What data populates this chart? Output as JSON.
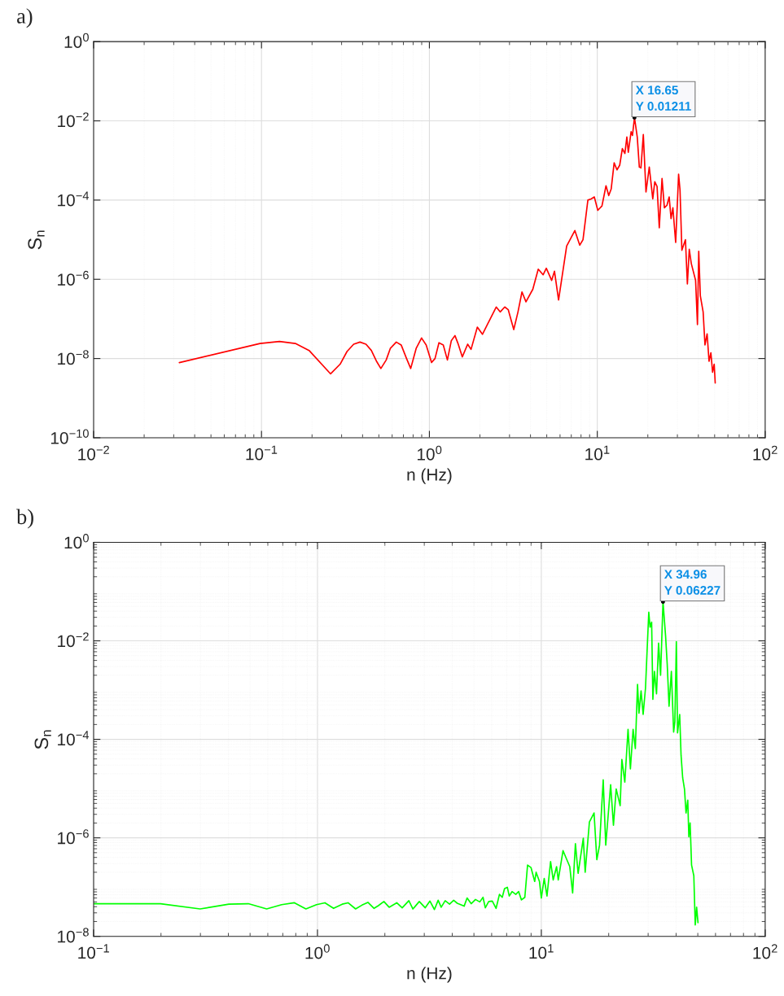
{
  "chart_data": [
    {
      "type": "line",
      "title": "a)",
      "xlabel": "n (Hz)",
      "ylabel": "S$_{n}$",
      "color": "#ff0000",
      "log": "xy",
      "grid": true,
      "xlim": [
        0.01,
        100
      ],
      "ylim": [
        1e-10,
        1
      ],
      "xticks": [
        {
          "value": 0.01,
          "label": "10$^{−2}$"
        },
        {
          "value": 0.1,
          "label": "10$^{−1}$"
        },
        {
          "value": 1,
          "label": "10$^{0}$"
        },
        {
          "value": 10,
          "label": "10$^{1}$"
        },
        {
          "value": 100,
          "label": "10$^{2}$"
        }
      ],
      "yticks": [
        {
          "value": 1e-10,
          "label": "10$^{−10}$"
        },
        {
          "value": 1e-08,
          "label": "10$^{−8}$"
        },
        {
          "value": 1e-06,
          "label": "10$^{−6}$"
        },
        {
          "value": 0.0001,
          "label": "10$^{−4}$"
        },
        {
          "value": 0.01,
          "label": "10$^{−2}$"
        },
        {
          "value": 1,
          "label": "10$^{0}$"
        }
      ],
      "annotations": [
        {
          "text": "X 16.65\nY 0.01211",
          "x": 16.65,
          "y": 0.01211
        }
      ],
      "x": [
        0.0324,
        0.098,
        0.128,
        0.159,
        0.192,
        0.258,
        0.294,
        0.323,
        0.354,
        0.386,
        0.419,
        0.451,
        0.486,
        0.514,
        0.553,
        0.585,
        0.635,
        0.679,
        0.731,
        0.774,
        0.834,
        0.898,
        0.957,
        1.03,
        1.08,
        1.14,
        1.21,
        1.28,
        1.35,
        1.42,
        1.48,
        1.57,
        1.69,
        1.77,
        1.93,
        2.07,
        2.22,
        2.5,
        2.64,
        2.81,
        2.95,
        3.18,
        3.37,
        3.56,
        3.76,
        4.13,
        4.45,
        4.76,
        4.97,
        5.35,
        5.56,
        5.88,
        6.57,
        7.35,
        7.86,
        8.22,
        8.79,
        9.19,
        9.6,
        10.07,
        10.66,
        11.27,
        11.7,
        12.1,
        12.6,
        13.1,
        13.6,
        14.1,
        14.6,
        15.0,
        15.3,
        15.9,
        16.2,
        16.65,
        17.3,
        17.8,
        18.2,
        18.8,
        19.5,
        20.4,
        21.4,
        22.0,
        22.7,
        23.4,
        24.3,
        25.1,
        26.0,
        26.8,
        27.5,
        28.2,
        29.3,
        30.5,
        31.1,
        31.9,
        33.5,
        34.4,
        35.3,
        36.3,
        38.5,
        39.5,
        40.2,
        41.1,
        42.7,
        43.8,
        45.1,
        46.3,
        47.5,
        48.6,
        49.7,
        50.4
      ],
      "values": [
        7.9e-09,
        2.4e-08,
        2.7e-08,
        2.4e-08,
        1.6e-08,
        4.1e-09,
        7.2e-09,
        1.5e-08,
        2.3e-08,
        2.6e-08,
        2.3e-08,
        1.6e-08,
        8.3e-09,
        5.6e-09,
        9.2e-09,
        1.8e-08,
        2.6e-08,
        2.2e-08,
        1e-08,
        5.6e-09,
        1.8e-08,
        3.3e-08,
        2.2e-08,
        7.9e-09,
        1e-08,
        2.5e-08,
        2.2e-08,
        9.2e-09,
        2.8e-08,
        3.8e-08,
        2.4e-08,
        1.1e-08,
        2.3e-08,
        1.7e-08,
        6.2e-08,
        4.1e-08,
        7.4e-08,
        2e-07,
        1.5e-07,
        2e-07,
        1.7e-07,
        5.4e-08,
        1.5e-07,
        4.8e-07,
        2.7e-07,
        5.6e-07,
        1.8e-06,
        1.3e-06,
        1.9e-06,
        9.4e-07,
        1.6e-06,
        3e-07,
        6.9e-06,
        1.7e-05,
        7.3e-06,
        1e-05,
        0.0001,
        0.000107,
        0.00012,
        5.5e-05,
        7.1e-05,
        0.00023,
        0.00013,
        0.00019,
        0.00087,
        0.00058,
        0.00076,
        0.002,
        0.0015,
        0.0039,
        0.0016,
        0.0053,
        0.0043,
        0.01211,
        0.0039,
        0.00068,
        0.00065,
        0.0045,
        0.00016,
        0.00068,
        0.000107,
        0.00029,
        0.00022,
        2e-05,
        0.00035,
        6.4e-05,
        7.4e-05,
        0.00012,
        3.4e-05,
        6.4e-05,
        8.5e-06,
        0.00045,
        0.00018,
        5.4e-06,
        1e-05,
        7.6e-07,
        5.7e-06,
        2.5e-06,
        9.4e-07,
        7.2e-08,
        5.1e-06,
        3.8e-07,
        1.5e-07,
        2.2e-08,
        4.2e-08,
        8.5e-09,
        1.4e-08,
        4.5e-09,
        7.2e-09,
        2.4e-09
      ]
    },
    {
      "type": "line",
      "title": "b)",
      "xlabel": "n (Hz)",
      "ylabel": "S$_{n}$",
      "color": "#00ff00",
      "log": "xy",
      "grid": true,
      "xlim": [
        0.1,
        100
      ],
      "ylim": [
        1e-08,
        1
      ],
      "xticks": [
        {
          "value": 0.1,
          "label": "10$^{−1}$"
        },
        {
          "value": 1,
          "label": "10$^{0}$"
        },
        {
          "value": 10,
          "label": "10$^{1}$"
        },
        {
          "value": 100,
          "label": "10$^{2}$"
        }
      ],
      "yticks": [
        {
          "value": 1e-08,
          "label": "10$^{−8}$"
        },
        {
          "value": 1e-06,
          "label": "10$^{−6}$"
        },
        {
          "value": 0.0001,
          "label": "10$^{−4}$"
        },
        {
          "value": 0.01,
          "label": "10$^{−2}$"
        },
        {
          "value": 1,
          "label": "10$^{0}$"
        }
      ],
      "annotations": [
        {
          "text": "X 34.96\nY 0.06227",
          "x": 34.96,
          "y": 0.06227
        }
      ],
      "x": [
        0.1,
        0.199,
        0.299,
        0.402,
        0.491,
        0.593,
        0.692,
        0.789,
        0.888,
        0.99,
        1.08,
        1.18,
        1.29,
        1.37,
        1.48,
        1.58,
        1.68,
        1.79,
        1.87,
        1.98,
        2.09,
        2.26,
        2.39,
        2.56,
        2.67,
        2.85,
        3.03,
        3.18,
        3.33,
        3.46,
        3.57,
        3.72,
        3.89,
        4.06,
        4.21,
        4.52,
        4.66,
        4.86,
        5.08,
        5.31,
        5.49,
        5.62,
        5.82,
        6.04,
        6.28,
        6.5,
        6.69,
        6.85,
        7.05,
        7.19,
        7.4,
        7.69,
        7.92,
        8.15,
        8.44,
        8.68,
        8.99,
        9.34,
        9.48,
        9.81,
        10.0,
        10.3,
        10.6,
        11.0,
        11.3,
        11.7,
        11.9,
        12.5,
        13.0,
        13.4,
        13.8,
        14.2,
        14.6,
        15.4,
        15.7,
        16.4,
        17.2,
        17.7,
        18.2,
        18.9,
        19.4,
        20.4,
        21.0,
        21.6,
        22.5,
        22.9,
        23.6,
        24.4,
        25.0,
        25.7,
        26.3,
        26.9,
        27.3,
        27.9,
        28.5,
        29.2,
        29.8,
        30.2,
        30.6,
        31.1,
        31.5,
        32.0,
        32.7,
        33.4,
        34.1,
        34.96,
        35.9,
        36.5,
        37.2,
        38.1,
        39.0,
        39.5,
        40.1,
        40.6,
        41.5,
        42.1,
        42.8,
        43.6,
        44.3,
        45.1,
        45.6,
        46.2,
        46.9,
        48.0,
        48.7,
        49.4,
        50.1
      ],
      "values": [
        4.6e-08,
        4.6e-08,
        3.6e-08,
        4.5e-08,
        4.6e-08,
        3.6e-08,
        4.4e-08,
        4.8e-08,
        3.6e-08,
        4.4e-08,
        4.8e-08,
        3.7e-08,
        4.5e-08,
        4.8e-08,
        3.6e-08,
        4.3e-08,
        4.9e-08,
        3.7e-08,
        4.2e-08,
        5.1e-08,
        3.9e-08,
        4.8e-08,
        3.8e-08,
        5.3e-08,
        3.6e-08,
        5.1e-08,
        3.8e-08,
        5.2e-08,
        3.5e-08,
        5.4e-08,
        3.9e-08,
        5.3e-08,
        4.5e-08,
        5.4e-08,
        4.7e-08,
        4.1e-08,
        6e-08,
        4.6e-08,
        5.6e-08,
        5e-08,
        6.2e-08,
        3.8e-08,
        5.1e-08,
        5.2e-08,
        3.7e-08,
        7.1e-08,
        6.2e-08,
        9.3e-08,
        9.9e-08,
        6.6e-08,
        8.1e-08,
        7.1e-08,
        8.1e-08,
        5.5e-08,
        6.2e-08,
        2.8e-07,
        2.5e-07,
        1.3e-07,
        2e-07,
        1.3e-07,
        6e-08,
        1.5e-07,
        6.6e-08,
        3.3e-07,
        1.4e-07,
        2.6e-07,
        1.4e-07,
        5.5e-07,
        3.6e-07,
        2.6e-07,
        7.6e-08,
        7.6e-07,
        1.9e-07,
        9.8e-07,
        2e-07,
        2.1e-06,
        3.2e-06,
        3.6e-07,
        7.1e-07,
        1.5e-05,
        7.1e-07,
        1.2e-05,
        1.8e-06,
        9.8e-06,
        4.5e-06,
        3.9e-05,
        1.35e-05,
        0.00016,
        2.5e-05,
        0.00016,
        6.5e-05,
        0.0013,
        0.00034,
        0.00096,
        0.00032,
        0.0011,
        0.0096,
        0.038,
        0.019,
        0.024,
        0.00065,
        0.0024,
        0.00084,
        0.009,
        0.002,
        0.06227,
        0.0125,
        0.0034,
        0.00047,
        0.0024,
        0.00014,
        0.00023,
        0.0096,
        0.000135,
        0.00032,
        4.7e-05,
        1.65e-05,
        9.8e-06,
        3.2e-06,
        5.8e-06,
        1.05e-06,
        2e-06,
        2.8e-07,
        1.7e-07,
        1.7e-08,
        3.9e-08,
        1.9e-08
      ]
    }
  ]
}
